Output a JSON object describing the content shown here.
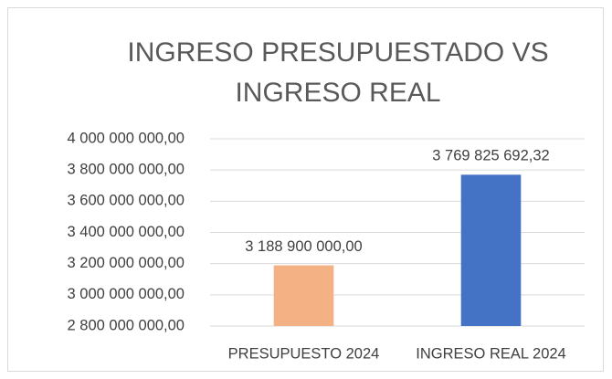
{
  "chart_data": {
    "type": "bar",
    "title": "INGRESO PRESUPUESTADO VS INGRESO REAL",
    "categories": [
      "PRESUPUESTO 2024",
      "INGRESO REAL 2024"
    ],
    "values": [
      3188900000,
      3769825692.32
    ],
    "value_labels": [
      "3 188 900 000,00",
      "3 769 825 692,32"
    ],
    "colors": [
      "#f4b183",
      "#4472c4"
    ],
    "ylim": [
      2800000000,
      4000000000
    ],
    "yticks": [
      {
        "value": 2800000000,
        "label": "2 800 000 000,00"
      },
      {
        "value": 3000000000,
        "label": "3 000 000 000,00"
      },
      {
        "value": 3200000000,
        "label": "3 200 000 000,00"
      },
      {
        "value": 3400000000,
        "label": "3 400 000 000,00"
      },
      {
        "value": 3600000000,
        "label": "3 600 000 000,00"
      },
      {
        "value": 3800000000,
        "label": "3 800 000 000,00"
      },
      {
        "value": 4000000000,
        "label": "4 000 000 000,00"
      }
    ],
    "grid": true
  }
}
